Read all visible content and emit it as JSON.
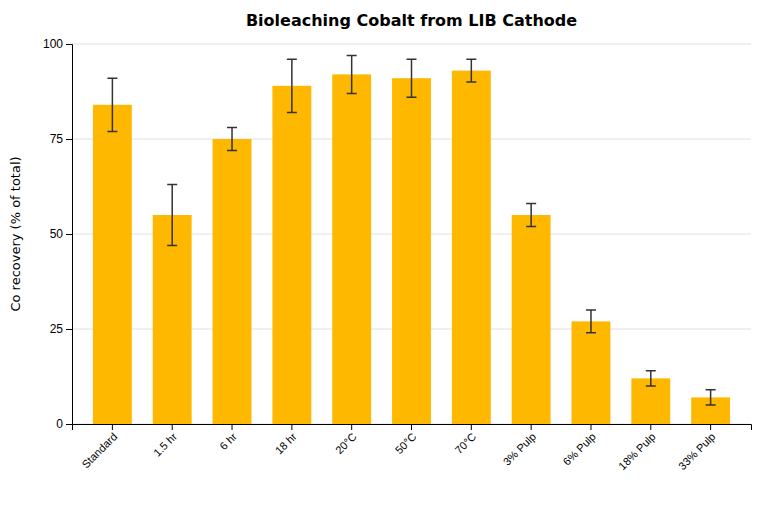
{
  "chart_data": {
    "type": "bar",
    "title": "Bioleaching Cobalt from LIB Cathode",
    "ylabel": "Co recovery (% of total)",
    "categories": [
      "Standard",
      "1.5 hr",
      "6 hr",
      "18 hr",
      "20°C",
      "50°C",
      "70°C",
      "3% Pulp",
      "6% Pulp",
      "18% Pulp",
      "33% Pulp"
    ],
    "values": [
      84,
      55,
      75,
      89,
      92,
      91,
      93,
      55,
      27,
      12,
      7
    ],
    "errors": [
      7,
      8,
      3,
      7,
      5,
      5,
      3,
      3,
      3,
      2,
      2
    ],
    "color": "#FFB800",
    "ylim": [
      0,
      100
    ],
    "yticks": [
      0,
      25,
      50,
      75,
      100
    ],
    "grid": true
  }
}
